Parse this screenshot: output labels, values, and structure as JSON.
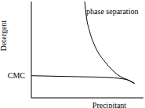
{
  "chart_data": {
    "type": "line",
    "x_label": "Precipitant",
    "y_label": "Detergent",
    "xlim": [
      0,
      100
    ],
    "ylim": [
      0,
      100
    ],
    "xticks": [],
    "yticks": [
      {
        "value": 23,
        "label": "CMC"
      }
    ],
    "tick_labels": "y",
    "grid": false,
    "series": [
      {
        "x": [
          47.6,
          49,
          52,
          57,
          66,
          77,
          87,
          92
        ],
        "values": [
          100,
          85,
          69,
          53,
          37,
          24,
          18,
          15
        ],
        "color": "#000000"
      },
      {
        "x": [
          0,
          40,
          70,
          85,
          92
        ],
        "values": [
          23,
          22,
          21,
          19,
          15
        ],
        "color": "#000000"
      }
    ],
    "annotations": [
      {
        "text": "phase separation",
        "x": 49,
        "y": 90
      }
    ]
  }
}
